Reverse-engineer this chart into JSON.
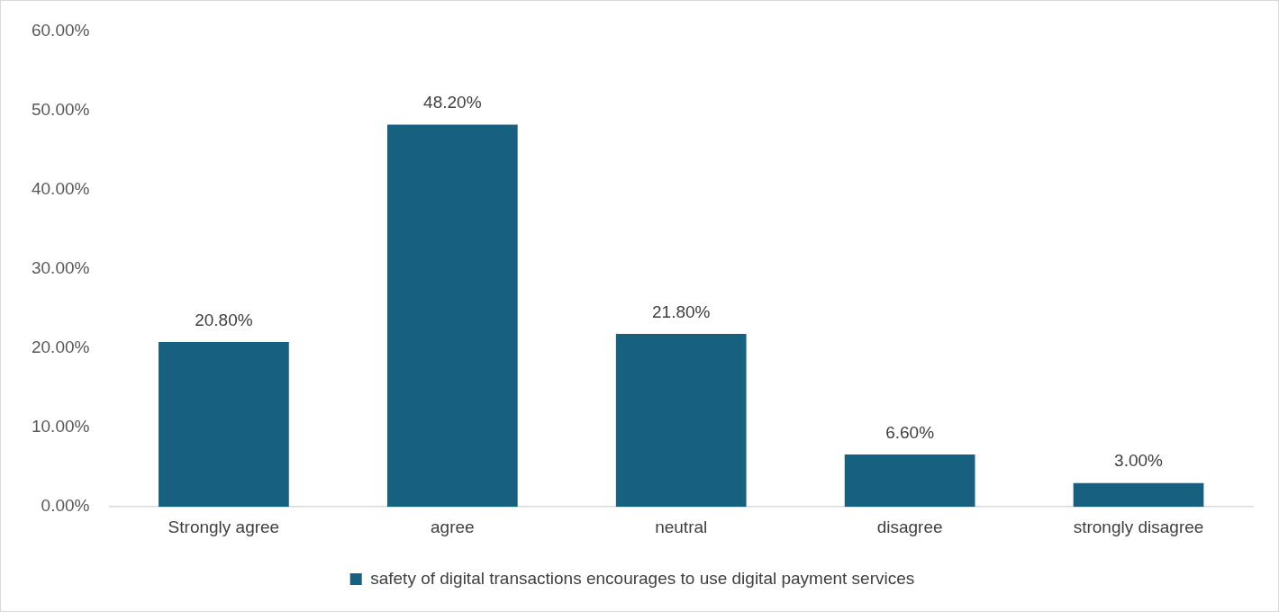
{
  "chart_data": {
    "type": "bar",
    "categories": [
      "Strongly agree",
      "agree",
      "neutral",
      "disagree",
      "strongly disagree"
    ],
    "series": [
      {
        "name": "safety of digital transactions encourages to use digital payment services",
        "color": "#17607f",
        "values": [
          20.8,
          48.2,
          21.8,
          6.6,
          3.0
        ],
        "value_labels": [
          "20.80%",
          "48.20%",
          "21.80%",
          "6.60%",
          "3.00%"
        ]
      }
    ],
    "ylim": [
      0,
      60
    ],
    "yticks": [
      {
        "value": 0,
        "label": "0.00%"
      },
      {
        "value": 10,
        "label": "10.00%"
      },
      {
        "value": 20,
        "label": "20.00%"
      },
      {
        "value": 30,
        "label": "30.00%"
      },
      {
        "value": 40,
        "label": "40.00%"
      },
      {
        "value": 50,
        "label": "50.00%"
      },
      {
        "value": 60,
        "label": "60.00%"
      }
    ],
    "grid": false,
    "legend": "bottom"
  }
}
